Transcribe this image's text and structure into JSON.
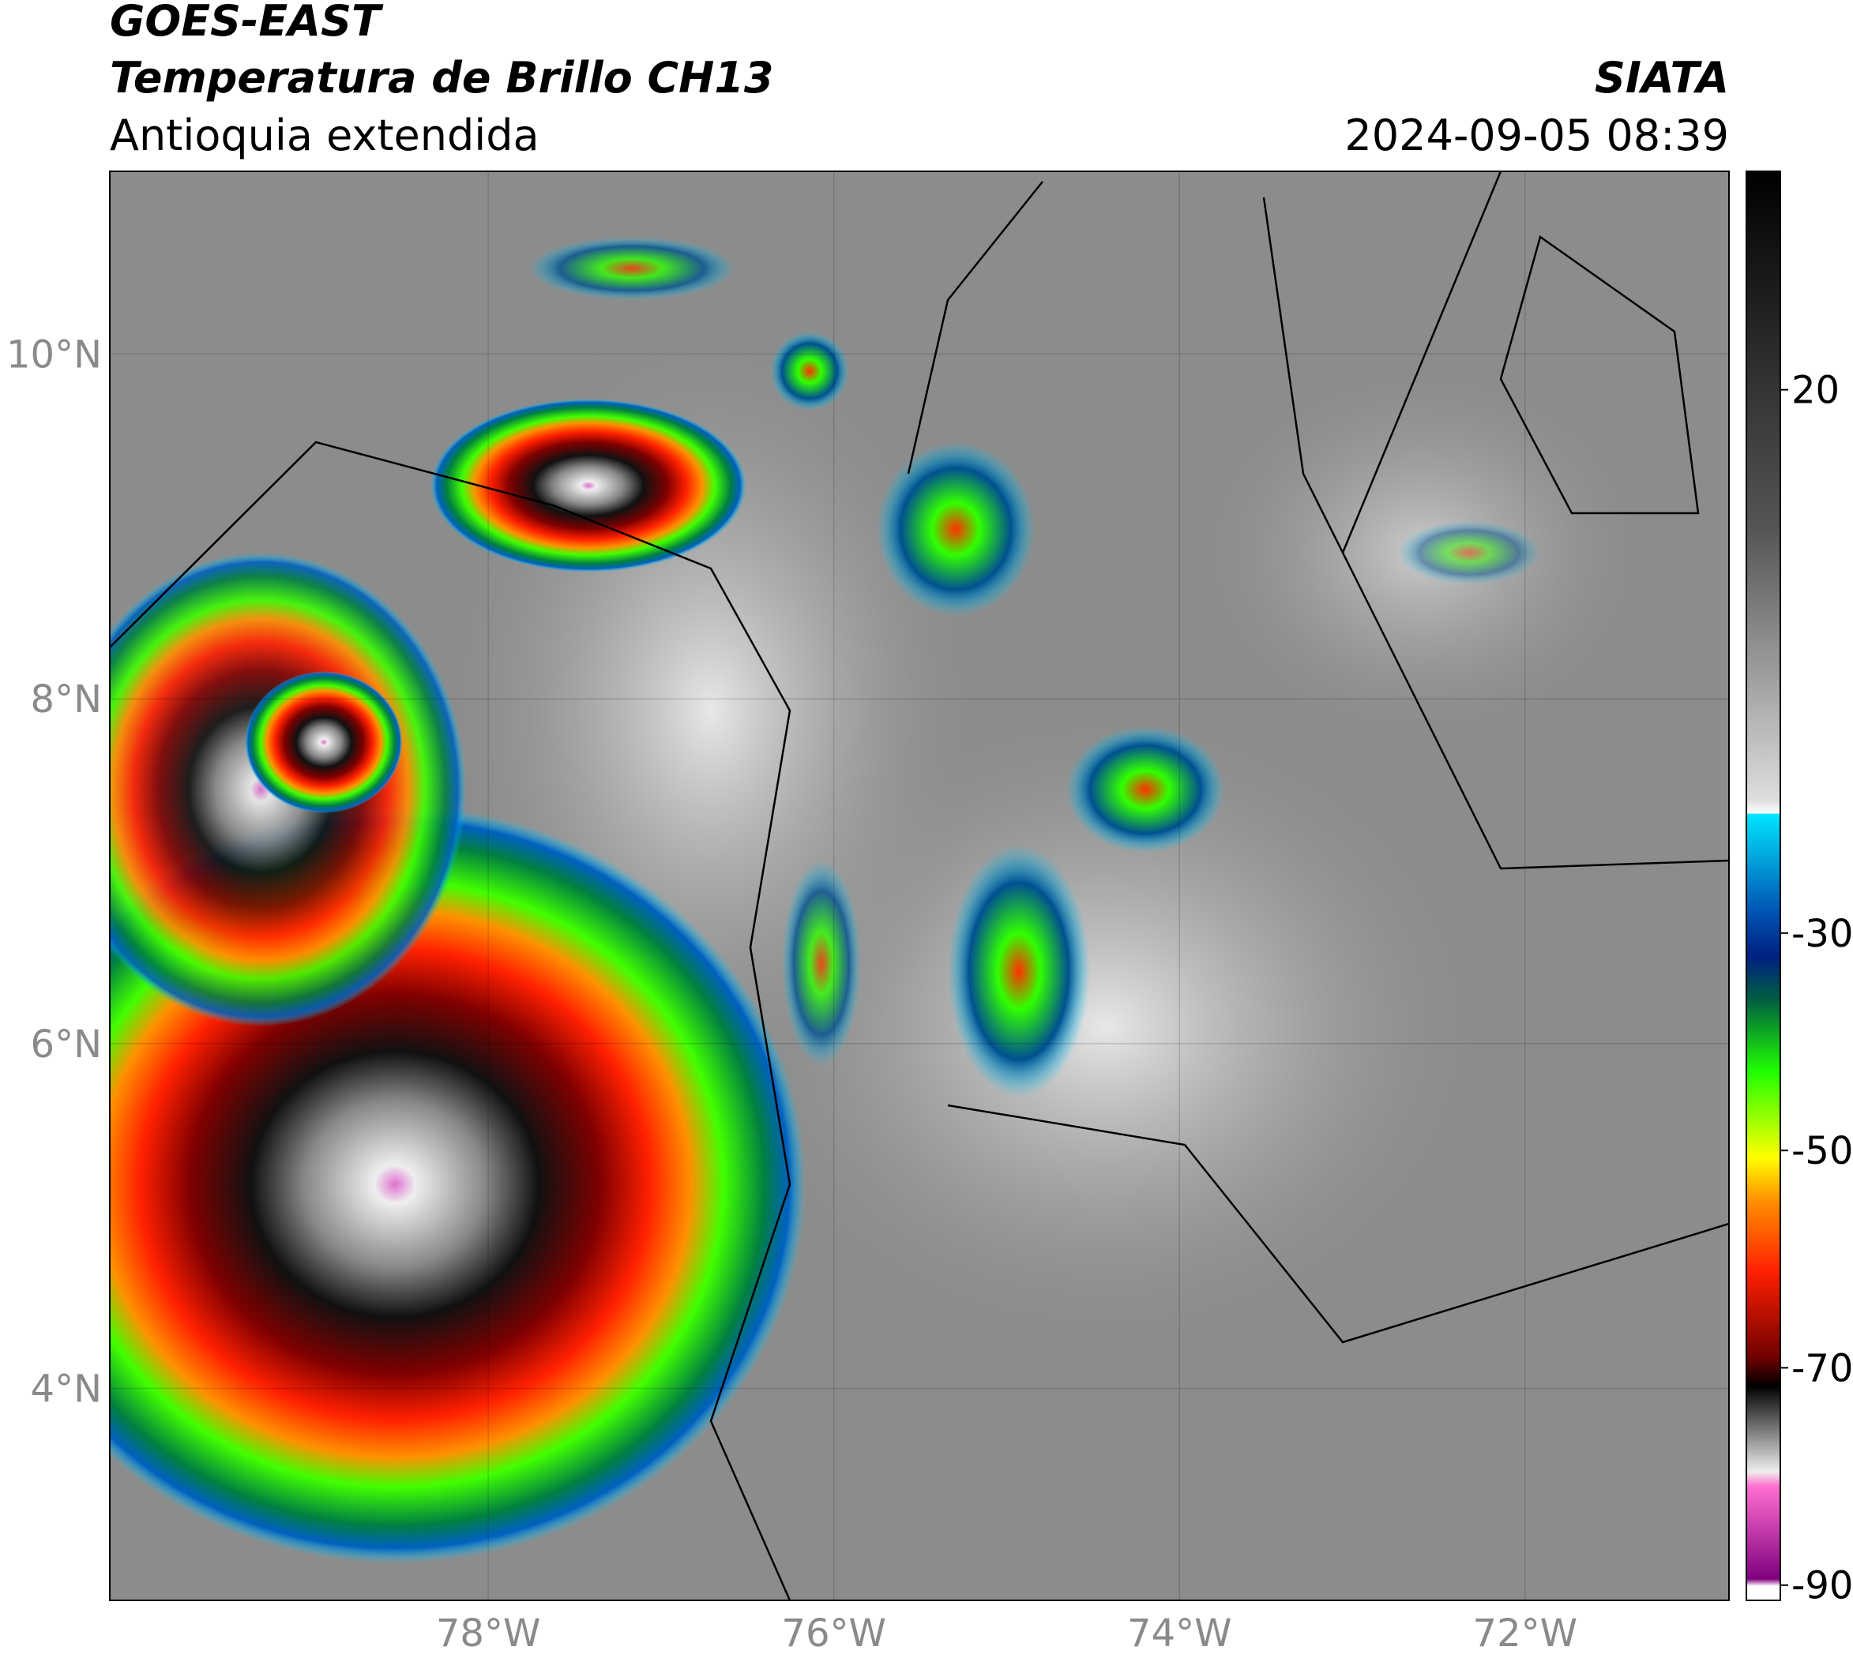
{
  "header": {
    "title": "GOES-EAST",
    "subtitle": "Temperatura de Brillo CH13",
    "region": "Antioquia extendida",
    "source": "SIATA",
    "datetime": "2024-09-05 08:39"
  },
  "map": {
    "lonlim": [
      -80.19,
      -70.82
    ],
    "latlim": [
      2.77,
      11.06
    ],
    "lonticks": [
      {
        "value": -78,
        "label": "78°W"
      },
      {
        "value": -76,
        "label": "76°W"
      },
      {
        "value": -74,
        "label": "74°W"
      },
      {
        "value": -72,
        "label": "72°W"
      }
    ],
    "latticks": [
      {
        "value": 4,
        "label": "4°N"
      },
      {
        "value": 6,
        "label": "6°N"
      },
      {
        "value": 8,
        "label": "8°N"
      },
      {
        "value": 10,
        "label": "10°N"
      }
    ],
    "grid": true
  },
  "colorbar": {
    "range": [
      -91.4,
      40.1
    ],
    "ticks": [
      20,
      -30,
      -50,
      -70,
      -90
    ]
  }
}
